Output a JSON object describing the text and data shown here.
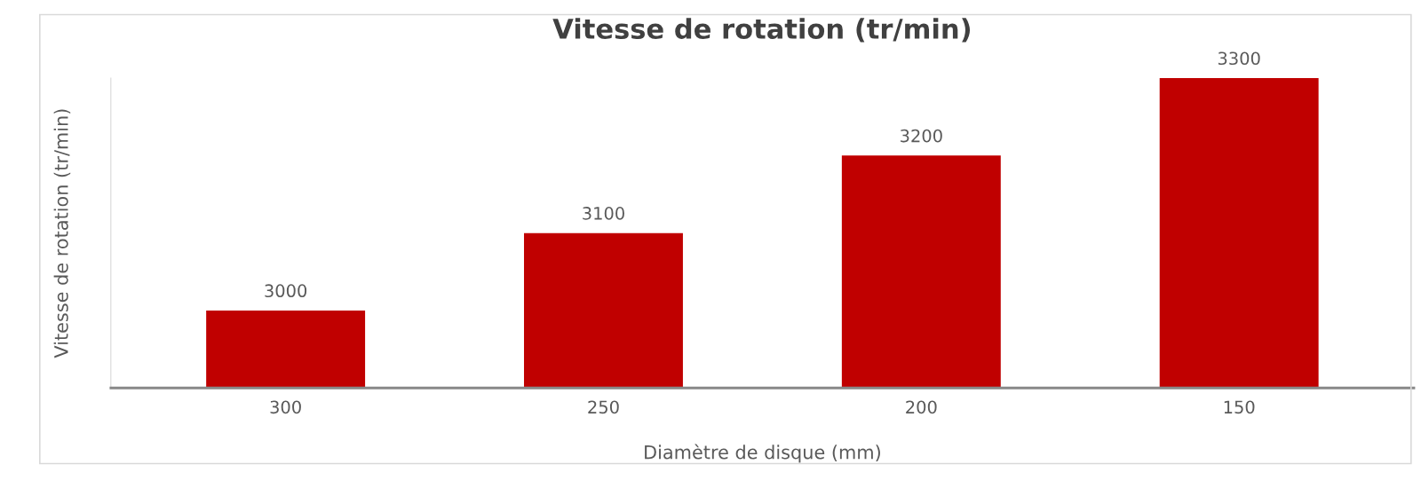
{
  "chart_data": {
    "type": "bar",
    "title": "Vitesse de rotation (tr/min)",
    "xlabel": "Diamètre de disque (mm)",
    "ylabel": "Vitesse de rotation (tr/min)",
    "categories": [
      "300",
      "250",
      "200",
      "150"
    ],
    "values": [
      3000,
      3100,
      3200,
      3300
    ],
    "color": "#c00000",
    "ylim": [
      2900,
      3300
    ],
    "tick_labels": "x",
    "data_labels": true,
    "grid": false,
    "legend": false
  }
}
